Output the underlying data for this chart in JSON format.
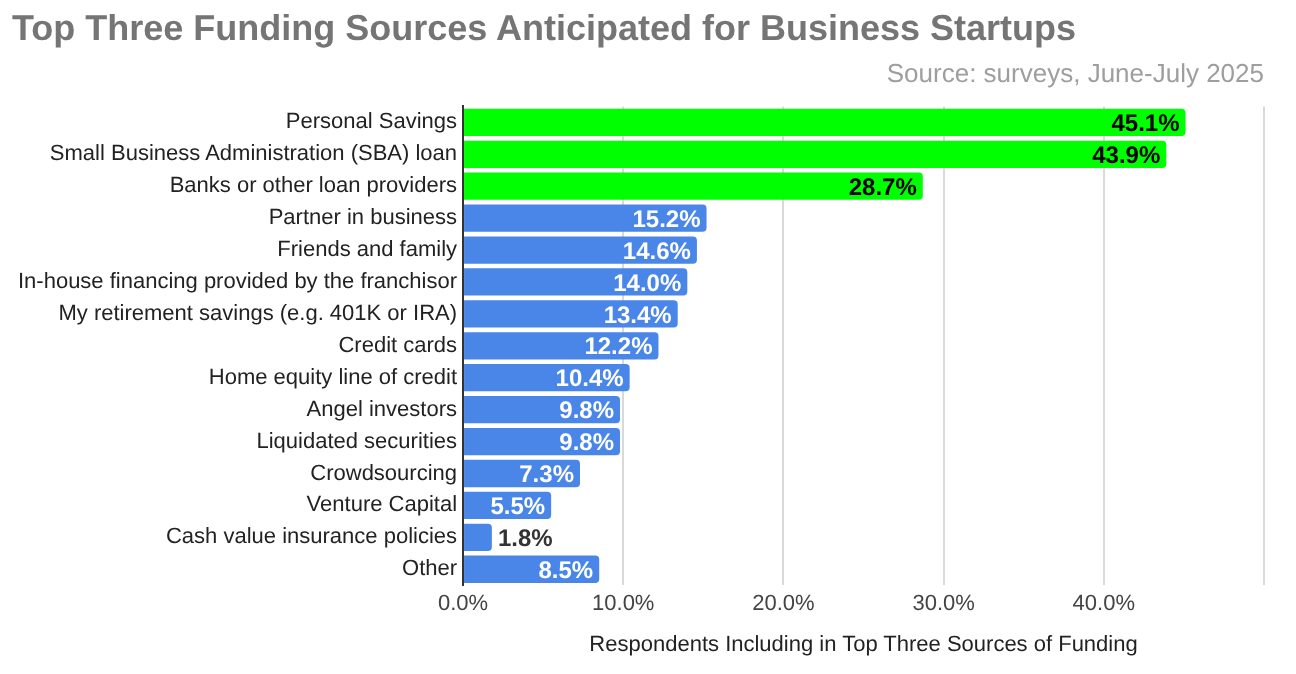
{
  "chart_data": {
    "type": "bar",
    "orientation": "horizontal",
    "title": "Top Three Funding Sources Anticipated for Business Startups",
    "subtitle": "Source: surveys, June-July 2025",
    "xlabel": "Respondents Including in Top Three Sources of Funding",
    "categories": [
      "Personal Savings",
      "Small Business Administration (SBA) loan",
      "Banks or other loan providers",
      "Partner in business",
      "Friends and family",
      "In-house financing provided by the franchisor",
      "My retirement savings (e.g. 401K or IRA)",
      "Credit cards",
      "Home equity line of credit",
      "Angel investors",
      "Liquidated securities",
      "Crowdsourcing",
      "Venture Capital",
      "Cash value insurance policies",
      "Other"
    ],
    "values": [
      45.1,
      43.9,
      28.7,
      15.2,
      14.6,
      14.0,
      13.4,
      12.2,
      10.4,
      9.8,
      9.8,
      7.3,
      5.5,
      1.8,
      8.5
    ],
    "colors": [
      "#00ff00",
      "#00ff00",
      "#00ff00",
      "#4a86e8",
      "#4a86e8",
      "#4a86e8",
      "#4a86e8",
      "#4a86e8",
      "#4a86e8",
      "#4a86e8",
      "#4a86e8",
      "#4a86e8",
      "#4a86e8",
      "#4a86e8",
      "#4a86e8"
    ],
    "value_labels": [
      "45.1%",
      "43.9%",
      "28.7%",
      "15.2%",
      "14.6%",
      "14.0%",
      "13.4%",
      "12.2%",
      "10.4%",
      "9.8%",
      "9.8%",
      "7.3%",
      "5.5%",
      "1.8%",
      "8.5%"
    ],
    "xlim": [
      0,
      50
    ],
    "xticks": [
      {
        "value": 0,
        "label": "0.0%"
      },
      {
        "value": 10,
        "label": "10.0%"
      },
      {
        "value": 20,
        "label": "20.0%"
      },
      {
        "value": 30,
        "label": "30.0%"
      },
      {
        "value": 40,
        "label": "40.0%"
      },
      {
        "value": 50,
        "label": null
      }
    ],
    "grid": "x",
    "legend": false
  }
}
